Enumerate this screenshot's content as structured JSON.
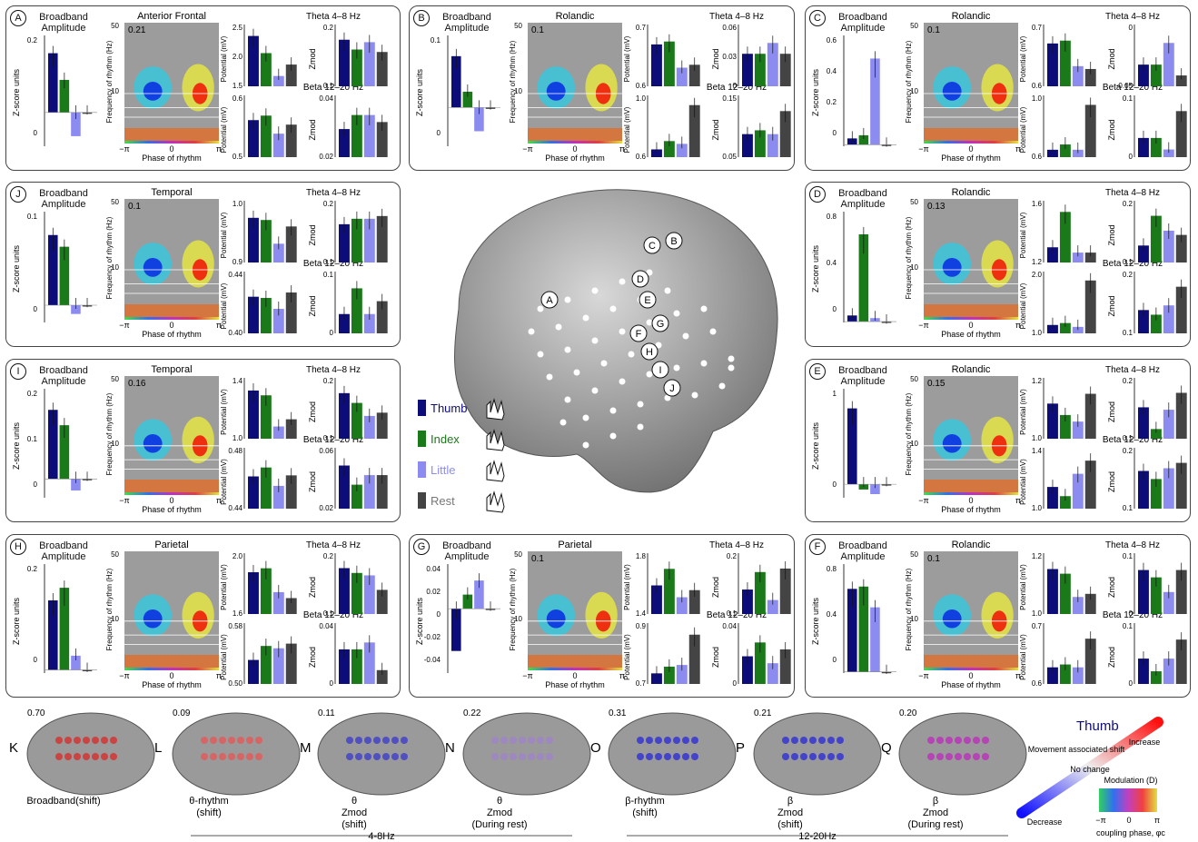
{
  "panels": [
    {
      "id": "A",
      "region": "Anterior Frontal",
      "value": "0.21",
      "bb_ticks": [
        "0.2",
        "0"
      ],
      "theta_pot": [
        "2.5",
        "2.0",
        "1.5"
      ],
      "theta_z": [
        "0.2",
        "0.1"
      ],
      "beta_pot": [
        "0.6",
        "0.5"
      ],
      "beta_z": [
        "0.04",
        "0.02"
      ],
      "broadband": [
        0.2,
        0.11,
        -0.08,
        0.0
      ],
      "theta_p": [
        2.5,
        2.2,
        1.8,
        2.0
      ],
      "theta_m": [
        0.19,
        0.15,
        0.18,
        0.14
      ],
      "beta_p": [
        0.55,
        0.56,
        0.52,
        0.54
      ],
      "beta_m": [
        0.02,
        0.03,
        0.03,
        0.025
      ]
    },
    {
      "id": "B",
      "region": "Rolandic",
      "value": "0.1",
      "bb_ticks": [
        "0.1",
        "0"
      ],
      "theta_pot": [
        "0.7",
        "0.6"
      ],
      "theta_z": [
        "0.06",
        "0.03",
        "0"
      ],
      "beta_pot": [
        "1.0",
        "0.6"
      ],
      "beta_z": [
        "0.15",
        "0.05"
      ],
      "broadband": [
        0.065,
        0.02,
        -0.03,
        0.0
      ],
      "theta_p": [
        0.72,
        0.73,
        0.64,
        0.65
      ],
      "theta_m": [
        0.03,
        0.03,
        0.04,
        0.03
      ],
      "beta_p": [
        0.56,
        0.62,
        0.6,
        0.88
      ],
      "beta_m": [
        0.06,
        0.07,
        0.06,
        0.12
      ]
    },
    {
      "id": "C",
      "region": "Rolandic",
      "value": "0.1",
      "bb_ticks": [
        "0.6",
        "0.4",
        "0.2",
        "0"
      ],
      "theta_pot": [
        "0.7",
        "0.6"
      ],
      "theta_z": [
        "0",
        "-0.05"
      ],
      "beta_pot": [
        "1.0",
        "0.6"
      ],
      "beta_z": [
        "0.1",
        "0"
      ],
      "broadband": [
        0.04,
        0.06,
        0.55,
        0.0
      ],
      "theta_p": [
        0.7,
        0.71,
        0.62,
        0.61
      ],
      "theta_m": [
        0.02,
        0.02,
        0.04,
        0.01
      ],
      "beta_p": [
        0.56,
        0.6,
        0.56,
        0.9
      ],
      "beta_m": [
        0.05,
        0.05,
        0.02,
        0.12
      ]
    },
    {
      "id": "J",
      "region": "Temporal",
      "value": "0.1",
      "bb_ticks": [
        "0.1",
        "0"
      ],
      "theta_pot": [
        "1.0",
        "0.9"
      ],
      "theta_z": [
        "0.2",
        "0.1"
      ],
      "beta_pot": [
        "0.44",
        "0.40"
      ],
      "beta_z": [
        "0.1",
        "0"
      ],
      "broadband": [
        0.12,
        0.1,
        -0.015,
        0.0
      ],
      "theta_p": [
        0.99,
        0.98,
        0.87,
        0.95
      ],
      "theta_m": [
        0.14,
        0.16,
        0.16,
        0.17
      ],
      "beta_p": [
        0.425,
        0.423,
        0.405,
        0.432
      ],
      "beta_m": [
        0.03,
        0.07,
        0.03,
        0.05
      ]
    },
    {
      "id": "D",
      "region": "Rolandic",
      "value": "0.13",
      "bb_ticks": [
        "0.8",
        "0.4",
        "0"
      ],
      "theta_pot": [
        "1.6",
        "1.2"
      ],
      "theta_z": [
        "0.2",
        "0.1"
      ],
      "beta_pot": [
        "2.0",
        "1.0"
      ],
      "beta_z": [
        "0.2",
        "0.1"
      ],
      "broadband": [
        0.07,
        1.0,
        0.04,
        0.0
      ],
      "theta_p": [
        1.18,
        1.58,
        1.12,
        1.12
      ],
      "theta_m": [
        0.08,
        0.22,
        0.15,
        0.13
      ],
      "beta_p": [
        1.05,
        1.08,
        1.02,
        1.75
      ],
      "beta_m": [
        0.1,
        0.08,
        0.12,
        0.2
      ]
    },
    {
      "id": "I",
      "region": "Temporal",
      "value": "0.16",
      "bb_ticks": [
        "0.2",
        "0.1",
        "0"
      ],
      "theta_pot": [
        "1.4",
        "1.0"
      ],
      "theta_z": [
        "0.2",
        "0.1"
      ],
      "beta_pot": [
        "0.48",
        "0.44"
      ],
      "beta_z": [
        "0.06",
        "0.02"
      ],
      "broadband": [
        0.18,
        0.14,
        -0.03,
        0.0
      ],
      "theta_p": [
        1.32,
        1.28,
        1.02,
        1.08
      ],
      "theta_m": [
        0.14,
        0.11,
        0.07,
        0.08
      ],
      "beta_p": [
        0.451,
        0.468,
        0.433,
        0.453
      ],
      "beta_m": [
        0.045,
        0.025,
        0.035,
        0.035
      ]
    },
    {
      "id": "E",
      "region": "Rolandic",
      "value": "0.15",
      "bb_ticks": [
        "1",
        "0"
      ],
      "theta_pot": [
        "1.2",
        "1.0"
      ],
      "theta_z": [
        "0.2",
        "0.1"
      ],
      "beta_pot": [
        "1.4",
        "1.0"
      ],
      "beta_z": [
        "0.2",
        "0.1"
      ],
      "broadband": [
        1.15,
        -0.08,
        -0.15,
        0.0
      ],
      "theta_p": [
        1.16,
        1.09,
        1.05,
        1.22
      ],
      "theta_m": [
        0.13,
        0.04,
        0.12,
        0.19
      ],
      "beta_p": [
        1.02,
        0.95,
        1.12,
        1.22
      ],
      "beta_m": [
        0.14,
        0.11,
        0.15,
        0.17
      ]
    },
    {
      "id": "H",
      "region": "Parietal",
      "value": "",
      "bb_ticks": [
        "0.2",
        "0"
      ],
      "theta_pot": [
        "2.0",
        "1.6"
      ],
      "theta_z": [
        "0.2",
        "0.1"
      ],
      "beta_pot": [
        "0.58",
        "0.50"
      ],
      "beta_z": [
        "0.04",
        "0"
      ],
      "broadband": [
        0.22,
        0.26,
        0.045,
        0.0
      ],
      "theta_p": [
        1.86,
        1.9,
        1.66,
        1.6
      ],
      "theta_m": [
        0.19,
        0.17,
        0.16,
        0.1
      ],
      "beta_p": [
        0.515,
        0.545,
        0.54,
        0.55
      ],
      "beta_m": [
        0.025,
        0.025,
        0.03,
        0.01
      ]
    },
    {
      "id": "G",
      "region": "Parietal",
      "value": "0.1",
      "bb_ticks": [
        "0.04",
        "0.02",
        "0",
        "-0.02",
        "-0.04"
      ],
      "theta_pot": [
        "1.8",
        "1.4"
      ],
      "theta_z": [
        "0.2",
        "0.1"
      ],
      "beta_pot": [
        "0.9",
        "0.7"
      ],
      "beta_z": [
        "0.04",
        "0"
      ],
      "broadband": [
        -0.045,
        0.015,
        0.03,
        0.0
      ],
      "theta_p": [
        1.52,
        1.66,
        1.42,
        1.48
      ],
      "theta_m": [
        0.07,
        0.12,
        0.04,
        0.13
      ],
      "beta_p": [
        0.63,
        0.67,
        0.68,
        0.86
      ],
      "beta_m": [
        0.02,
        0.03,
        0.015,
        0.025
      ]
    },
    {
      "id": "F",
      "region": "Rolandic",
      "value": "0.1",
      "bb_ticks": [
        "0.8",
        "0.4",
        "0"
      ],
      "theta_pot": [
        "1.2",
        "1.0"
      ],
      "theta_z": [
        "0.1",
        "0"
      ],
      "beta_pot": [
        "0.7",
        "0.6"
      ],
      "beta_z": [
        "0.1",
        "0"
      ],
      "broadband": [
        0.72,
        0.74,
        0.56,
        0.0
      ],
      "theta_p": [
        1.28,
        1.25,
        1.1,
        1.12
      ],
      "theta_m": [
        0.06,
        0.05,
        0.03,
        0.06
      ],
      "beta_p": [
        0.58,
        0.59,
        0.58,
        0.68
      ],
      "beta_m": [
        0.04,
        0.02,
        0.04,
        0.07
      ]
    }
  ],
  "labels": {
    "broadband": "Broadband\nAmplitude",
    "zscore": "Z-score units",
    "freq": "Frequency of rhythm (Hz)",
    "phase": "Phase of rhythm",
    "theta": "Theta 4–8 Hz",
    "beta": "Beta 12–20 Hz",
    "potential": "Potential (mV)",
    "zmod": "Zmod",
    "y50": "50",
    "y30": "30",
    "y10": "10",
    "xneg": "−π",
    "x0": "0",
    "xpos": "π"
  },
  "legend": {
    "thumb": "Thumb",
    "index": "Index",
    "little": "Little",
    "rest": "Rest"
  },
  "colors": {
    "thumb": "#0d0d7a",
    "index": "#1a7a1a",
    "little": "#8c8cf0",
    "rest": "#444444"
  },
  "brain_labels": [
    "A",
    "B",
    "C",
    "D",
    "E",
    "F",
    "G",
    "H",
    "I",
    "J"
  ],
  "bottom": {
    "items": [
      {
        "letter": "K",
        "value": "0.70",
        "caption": "Broadband(shift)"
      },
      {
        "letter": "L",
        "value": "0.09",
        "caption": "θ-rhythm\n(shift)"
      },
      {
        "letter": "M",
        "value": "0.11",
        "caption": "θ\nZmod\n(shift)"
      },
      {
        "letter": "N",
        "value": "0.22",
        "caption": "θ\nZmod\n(During rest)"
      },
      {
        "letter": "O",
        "value": "0.31",
        "caption": "β-rhythm\n(shift)"
      },
      {
        "letter": "P",
        "value": "0.21",
        "caption": "β\nZmod\n(shift)"
      },
      {
        "letter": "Q",
        "value": "0.20",
        "caption": "β\nZmod\n(During rest)"
      }
    ],
    "theta_range": "4-8Hz",
    "beta_range": "12-20Hz",
    "shift_labels": {
      "decrease": "Decrease",
      "nochange": "No change",
      "increase": "Increase",
      "axis": "Movement associated shift",
      "thumb": "Thumb"
    },
    "modulation": "Modulation (D)",
    "coupling": "coupling phase, φc",
    "phase_ticks": [
      "−π",
      "0",
      "π"
    ]
  }
}
